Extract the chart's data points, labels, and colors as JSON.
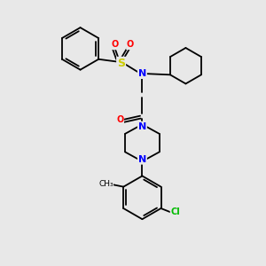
{
  "bg_color": "#e8e8e8",
  "bond_color": "#000000",
  "atom_colors": {
    "N": "#0000ff",
    "O": "#ff0000",
    "S": "#cccc00",
    "Cl": "#00bb00",
    "C": "#000000"
  },
  "font_size_atom": 7,
  "line_width": 1.3
}
